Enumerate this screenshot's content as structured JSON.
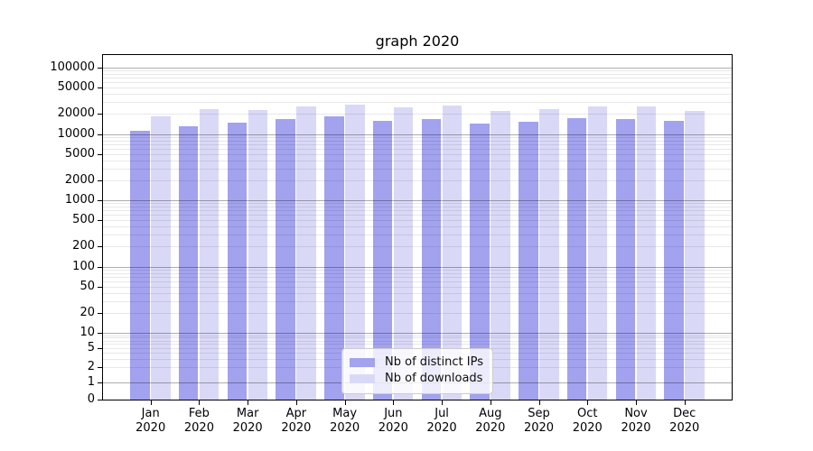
{
  "chart_data": {
    "type": "bar",
    "title": "graph 2020",
    "categories": [
      "Jan 2020",
      "Feb 2020",
      "Mar 2020",
      "Apr 2020",
      "May 2020",
      "Jun 2020",
      "Jul 2020",
      "Aug 2020",
      "Sep 2020",
      "Oct 2020",
      "Nov 2020",
      "Dec 2020"
    ],
    "series": [
      {
        "name": "Nb of distinct IPs",
        "color": "#a2a2ef",
        "values": [
          11100,
          12900,
          14800,
          16900,
          18200,
          15900,
          16600,
          14300,
          15400,
          17500,
          16900,
          15600
        ]
      },
      {
        "name": "Nb of downloads",
        "color": "#d9d9f7",
        "values": [
          18500,
          23900,
          23200,
          25800,
          27700,
          25200,
          26800,
          22400,
          23700,
          26200,
          25800,
          22400
        ]
      }
    ],
    "y_axis": {
      "scale": "symlog",
      "ticks": [
        0,
        1,
        2,
        5,
        10,
        20,
        50,
        100,
        200,
        500,
        1000,
        2000,
        5000,
        10000,
        20000,
        50000,
        100000
      ]
    },
    "legend": {
      "position": "lower center"
    },
    "grid": {
      "horizontal": true,
      "major_color": "#b1b1b1",
      "minor_color": "#e8e8e8"
    }
  }
}
